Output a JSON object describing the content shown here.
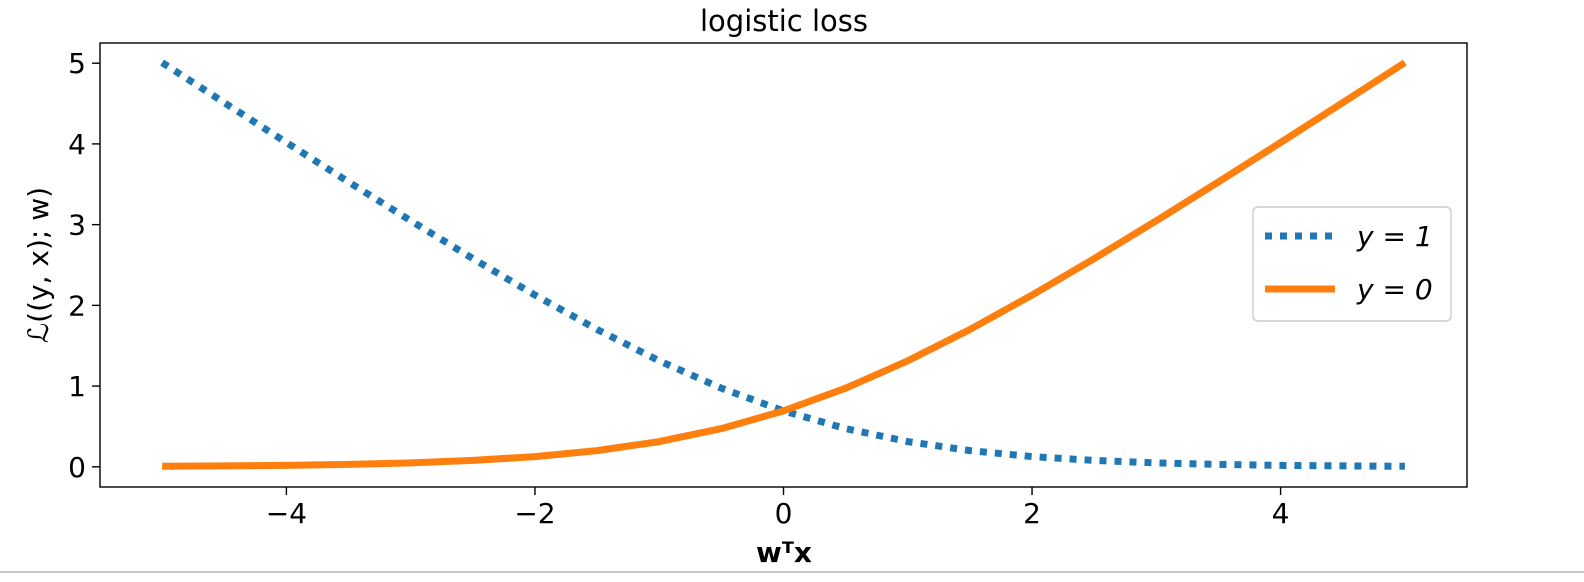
{
  "chart_data": {
    "type": "line",
    "title": "logistic loss",
    "xlabel": "wᵀx",
    "ylabel": "ℒ((y, x); w)",
    "xlim": [
      -5.5,
      5.5
    ],
    "ylim": [
      -0.25,
      5.25
    ],
    "xticks": [
      {
        "value": -4,
        "label": "−4"
      },
      {
        "value": -2,
        "label": "−2"
      },
      {
        "value": 0,
        "label": "0"
      },
      {
        "value": 2,
        "label": "2"
      },
      {
        "value": 4,
        "label": "4"
      }
    ],
    "yticks": [
      {
        "value": 0,
        "label": "0"
      },
      {
        "value": 1,
        "label": "1"
      },
      {
        "value": 2,
        "label": "2"
      },
      {
        "value": 3,
        "label": "3"
      },
      {
        "value": 4,
        "label": "4"
      },
      {
        "value": 5,
        "label": "5"
      }
    ],
    "grid": false,
    "legend_position": "right",
    "series": [
      {
        "name": "y = 1",
        "style": "dotted",
        "color": "#1f77b4",
        "x": [
          -5,
          -4.5,
          -4,
          -3.5,
          -3,
          -2.5,
          -2,
          -1.5,
          -1,
          -0.5,
          0,
          0.5,
          1,
          1.5,
          2,
          2.5,
          3,
          3.5,
          4,
          4.5,
          5
        ],
        "y": [
          5.007,
          4.511,
          4.018,
          3.53,
          3.049,
          2.579,
          2.127,
          1.701,
          1.313,
          0.974,
          0.693,
          0.474,
          0.313,
          0.201,
          0.127,
          0.079,
          0.049,
          0.03,
          0.018,
          0.011,
          0.007
        ]
      },
      {
        "name": "y = 0",
        "style": "solid",
        "color": "#ff7f0e",
        "x": [
          -5,
          -4.5,
          -4,
          -3.5,
          -3,
          -2.5,
          -2,
          -1.5,
          -1,
          -0.5,
          0,
          0.5,
          1,
          1.5,
          2,
          2.5,
          3,
          3.5,
          4,
          4.5,
          5
        ],
        "y": [
          0.007,
          0.011,
          0.018,
          0.03,
          0.049,
          0.079,
          0.127,
          0.201,
          0.313,
          0.474,
          0.693,
          0.974,
          1.313,
          1.701,
          2.127,
          2.579,
          3.049,
          3.53,
          4.018,
          4.511,
          5.007
        ]
      }
    ]
  }
}
